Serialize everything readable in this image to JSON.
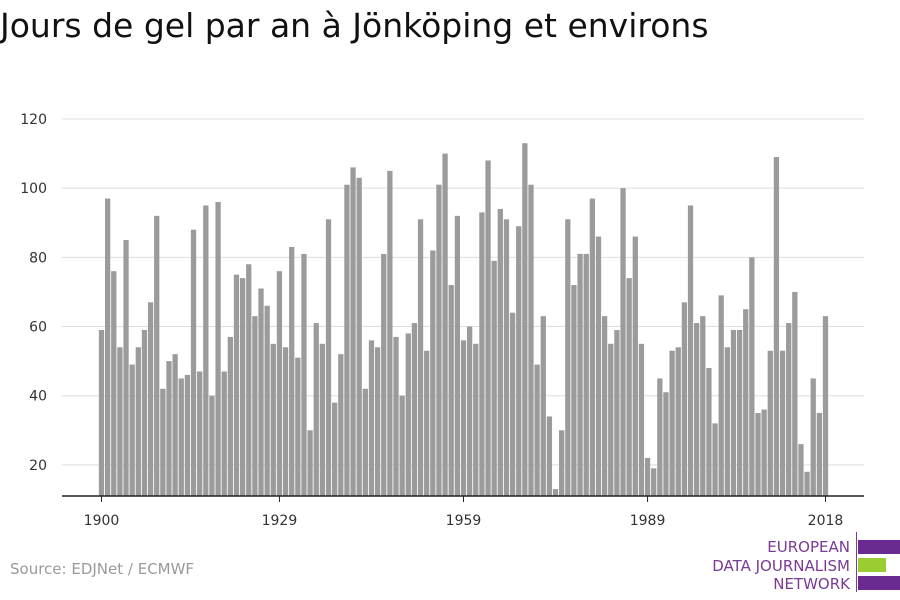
{
  "title": "Jours de gel par an à Jönköping et environs",
  "source": "Source: EDJNet / ECMWF",
  "logo": {
    "lines": [
      "EUROPEAN",
      "DATA JOURNALISM",
      "NETWORK"
    ],
    "colors": {
      "purple": "#6b2a8f",
      "green": "#9acd32"
    }
  },
  "chart_data": {
    "type": "bar",
    "x_start": 1900,
    "x_end": 2018,
    "values": [
      59,
      97,
      76,
      54,
      85,
      49,
      54,
      59,
      67,
      92,
      42,
      50,
      52,
      45,
      46,
      88,
      47,
      95,
      40,
      96,
      47,
      57,
      75,
      74,
      78,
      63,
      71,
      66,
      55,
      76,
      54,
      83,
      51,
      81,
      30,
      61,
      55,
      91,
      38,
      52,
      101,
      106,
      103,
      42,
      56,
      54,
      81,
      105,
      57,
      40,
      58,
      61,
      91,
      53,
      82,
      101,
      110,
      72,
      92,
      56,
      60,
      55,
      93,
      108,
      79,
      94,
      91,
      64,
      89,
      113,
      101,
      49,
      63,
      34,
      13,
      30,
      91,
      72,
      81,
      81,
      97,
      86,
      63,
      55,
      59,
      100,
      74,
      86,
      55,
      22,
      19,
      45,
      41,
      53,
      54,
      67,
      95,
      61,
      63,
      48,
      32,
      69,
      54,
      59,
      59,
      65,
      80,
      35,
      36,
      53,
      109,
      53,
      61,
      70,
      26,
      18,
      45,
      35,
      63
    ],
    "x_ticks": [
      "1900",
      "1929",
      "1959",
      "1989",
      "2018"
    ],
    "y_ticks": [
      20,
      40,
      60,
      80,
      100,
      120
    ],
    "ylim": [
      11,
      120
    ],
    "bar_color": "#9b9b9b",
    "grid": true
  }
}
